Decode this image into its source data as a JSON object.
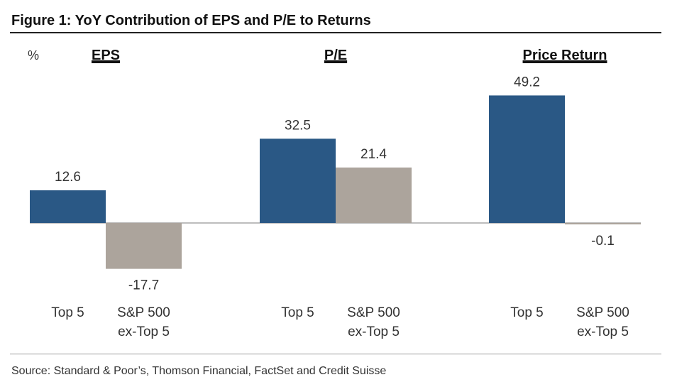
{
  "header": {
    "title": "Figure 1: YoY Contribution of EPS and P/E to Returns"
  },
  "footer": {
    "source": "Source: Standard & Poor’s, Thomson Financial, FactSet and Credit Suisse"
  },
  "chart_data": {
    "type": "bar",
    "title": "Figure 1: YoY Contribution of EPS and P/E to Returns",
    "ylabel": "%",
    "unit_label": "%",
    "ylim": [
      -20,
      55
    ],
    "grid": false,
    "legend": "none",
    "panels": [
      {
        "name": "EPS",
        "values": [
          12.6,
          -17.7
        ],
        "labels": [
          "12.6",
          "-17.7"
        ]
      },
      {
        "name": "P/E",
        "values": [
          32.5,
          21.4
        ],
        "labels": [
          "32.5",
          "21.4"
        ]
      },
      {
        "name": "Price Return",
        "values": [
          49.2,
          -0.1
        ],
        "labels": [
          "49.2",
          "-0.1"
        ]
      }
    ],
    "categories": [
      {
        "line1": "Top 5",
        "line2": ""
      },
      {
        "line1": "S&P 500",
        "line2": "ex-Top 5"
      }
    ],
    "series_colors": [
      "#2a5885",
      "#aca49c"
    ],
    "baseline_color": "#bdbdbd"
  }
}
